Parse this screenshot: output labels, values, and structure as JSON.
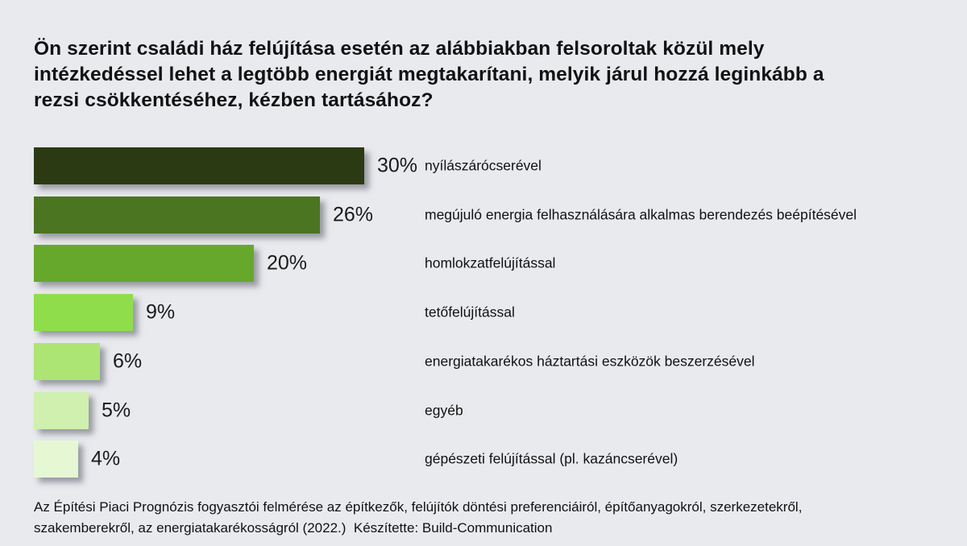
{
  "background_color": "#e9eaee",
  "title_lines": [
    "Ön szerint családi ház felújítása esetén az alábbiakban felsoroltak közül mely",
    "intézkedéssel lehet a legtöbb energiát megtakarítani, melyik járul hozzá leginkább a",
    "rezsi csökkentéséhez, kézben tartásához?"
  ],
  "footer_lines": [
    "Az Építési Piaci Prognózis fogyasztói felmérése az építkezők, felújítók döntési preferenciáiról, építőanyagokról, szerkezetekről,",
    "szakemberekről, az energiatakarékosságról (2022.)  Készítette: Build-Communication"
  ],
  "chart_data": {
    "type": "bar",
    "orientation": "horizontal",
    "title": "Ön szerint családi ház felújítása esetén az alábbiakban felsoroltak közül mely intézkedéssel lehet a legtöbb energiát megtakarítani, melyik járul hozzá leginkább a rezsi csökkentéséhez, kézben tartásához?",
    "categories": [
      "nyílászárócserével",
      "megújuló energia felhasználására alkalmas berendezés beépítésével",
      "homlokzatfelújítással",
      "tetőfelújítással",
      "energiatakarékos háztartási eszközök beszerzésével",
      "egyéb",
      "gépészeti felújítással (pl. kazáncserével)"
    ],
    "values": [
      30,
      26,
      20,
      9,
      6,
      5,
      4
    ],
    "value_labels": [
      "30%",
      "26%",
      "20%",
      "9%",
      "6%",
      "5%",
      "4%"
    ],
    "value_suffix": "%",
    "colors": [
      "#2b3a13",
      "#4b7521",
      "#66a82c",
      "#90dd4c",
      "#ace573",
      "#cff0ae",
      "#e5f8d3"
    ],
    "xlim": [
      0,
      30
    ],
    "grid": false,
    "legend": false,
    "source_note": "Az Építési Piaci Prognózis fogyasztói felmérése az építkezők, felújítók döntési preferenciáiról, építőanyagokról, szerkezetekről, szakemberekről, az energiatakarékosságról (2022.)  Készítette: Build-Communication"
  }
}
